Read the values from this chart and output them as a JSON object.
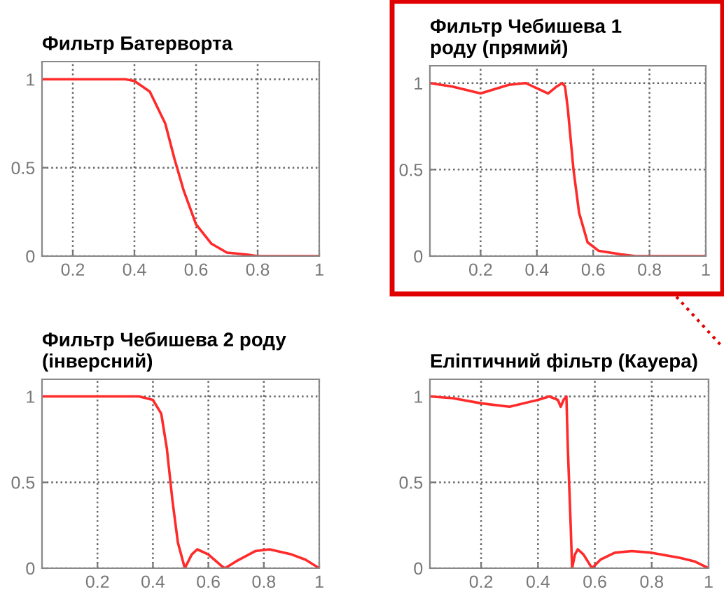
{
  "chart_data": [
    {
      "type": "line",
      "title": "Фильтр Батерворта",
      "x": [
        0.1,
        0.37,
        0.4,
        0.45,
        0.5,
        0.53,
        0.56,
        0.6,
        0.65,
        0.7,
        0.76,
        0.8,
        1
      ],
      "series": [
        {
          "color": "#ff2a2a",
          "values": [
            1,
            1,
            0.99,
            0.93,
            0.75,
            0.55,
            0.37,
            0.18,
            0.07,
            0.02,
            0.01,
            0,
            0
          ]
        }
      ],
      "xlim": [
        0.1,
        1
      ],
      "ylim": [
        0,
        1.1
      ],
      "xticks": [
        0.2,
        0.4,
        0.6,
        0.8,
        1
      ],
      "yticks": [
        0,
        0.5,
        1
      ],
      "grid": true,
      "legend": false
    },
    {
      "type": "line",
      "title": "Фильтр Чебишева 1\nроду (прямий)",
      "x": [
        0.02,
        0.1,
        0.2,
        0.3,
        0.36,
        0.4,
        0.44,
        0.47,
        0.49,
        0.5,
        0.51,
        0.53,
        0.55,
        0.58,
        0.62,
        0.7,
        0.75,
        1
      ],
      "series": [
        {
          "color": "#ff2a2a",
          "values": [
            1,
            0.98,
            0.94,
            0.99,
            1,
            0.97,
            0.94,
            0.98,
            1,
            0.98,
            0.85,
            0.5,
            0.25,
            0.08,
            0.03,
            0.01,
            0,
            0
          ]
        }
      ],
      "xlim": [
        0.02,
        1
      ],
      "ylim": [
        0,
        1.1
      ],
      "xticks": [
        0.2,
        0.4,
        0.6,
        0.8,
        1
      ],
      "yticks": [
        0,
        0.5,
        1
      ],
      "grid": true,
      "legend": false
    },
    {
      "type": "line",
      "title": "Фильтр Чебишева 2 роду\n(інверсний)",
      "x": [
        0,
        0.35,
        0.4,
        0.43,
        0.45,
        0.47,
        0.49,
        0.515,
        0.54,
        0.56,
        0.6,
        0.65,
        0.66,
        0.7,
        0.77,
        0.82,
        0.9,
        0.95,
        1
      ],
      "series": [
        {
          "color": "#ff2a2a",
          "values": [
            1,
            1,
            0.98,
            0.9,
            0.7,
            0.4,
            0.15,
            0,
            0.08,
            0.11,
            0.08,
            0.01,
            0,
            0.04,
            0.1,
            0.11,
            0.08,
            0.05,
            0
          ]
        }
      ],
      "xlim": [
        0,
        1
      ],
      "ylim": [
        0,
        1.1
      ],
      "xticks": [
        0.2,
        0.4,
        0.6,
        0.8,
        1
      ],
      "yticks": [
        0,
        0.5,
        1
      ],
      "grid": true,
      "legend": false
    },
    {
      "type": "line",
      "title": "Еліптичний фільтр (Кауера)",
      "x": [
        0.02,
        0.1,
        0.2,
        0.3,
        0.4,
        0.44,
        0.47,
        0.48,
        0.49,
        0.5,
        0.505,
        0.515,
        0.52,
        0.53,
        0.54,
        0.56,
        0.59,
        0.62,
        0.67,
        0.73,
        0.8,
        0.9,
        0.95,
        1
      ],
      "series": [
        {
          "color": "#ff2a2a",
          "values": [
            1,
            0.99,
            0.96,
            0.94,
            0.98,
            1,
            0.98,
            0.94,
            0.98,
            1,
            0.7,
            0.25,
            0,
            0.08,
            0.11,
            0.08,
            0,
            0.05,
            0.09,
            0.1,
            0.09,
            0.06,
            0.04,
            0
          ]
        }
      ],
      "xlim": [
        0.02,
        1
      ],
      "ylim": [
        0,
        1.1
      ],
      "xticks": [
        0.2,
        0.4,
        0.6,
        0.8,
        1
      ],
      "yticks": [
        0,
        0.5,
        1
      ],
      "grid": true,
      "legend": false
    }
  ]
}
